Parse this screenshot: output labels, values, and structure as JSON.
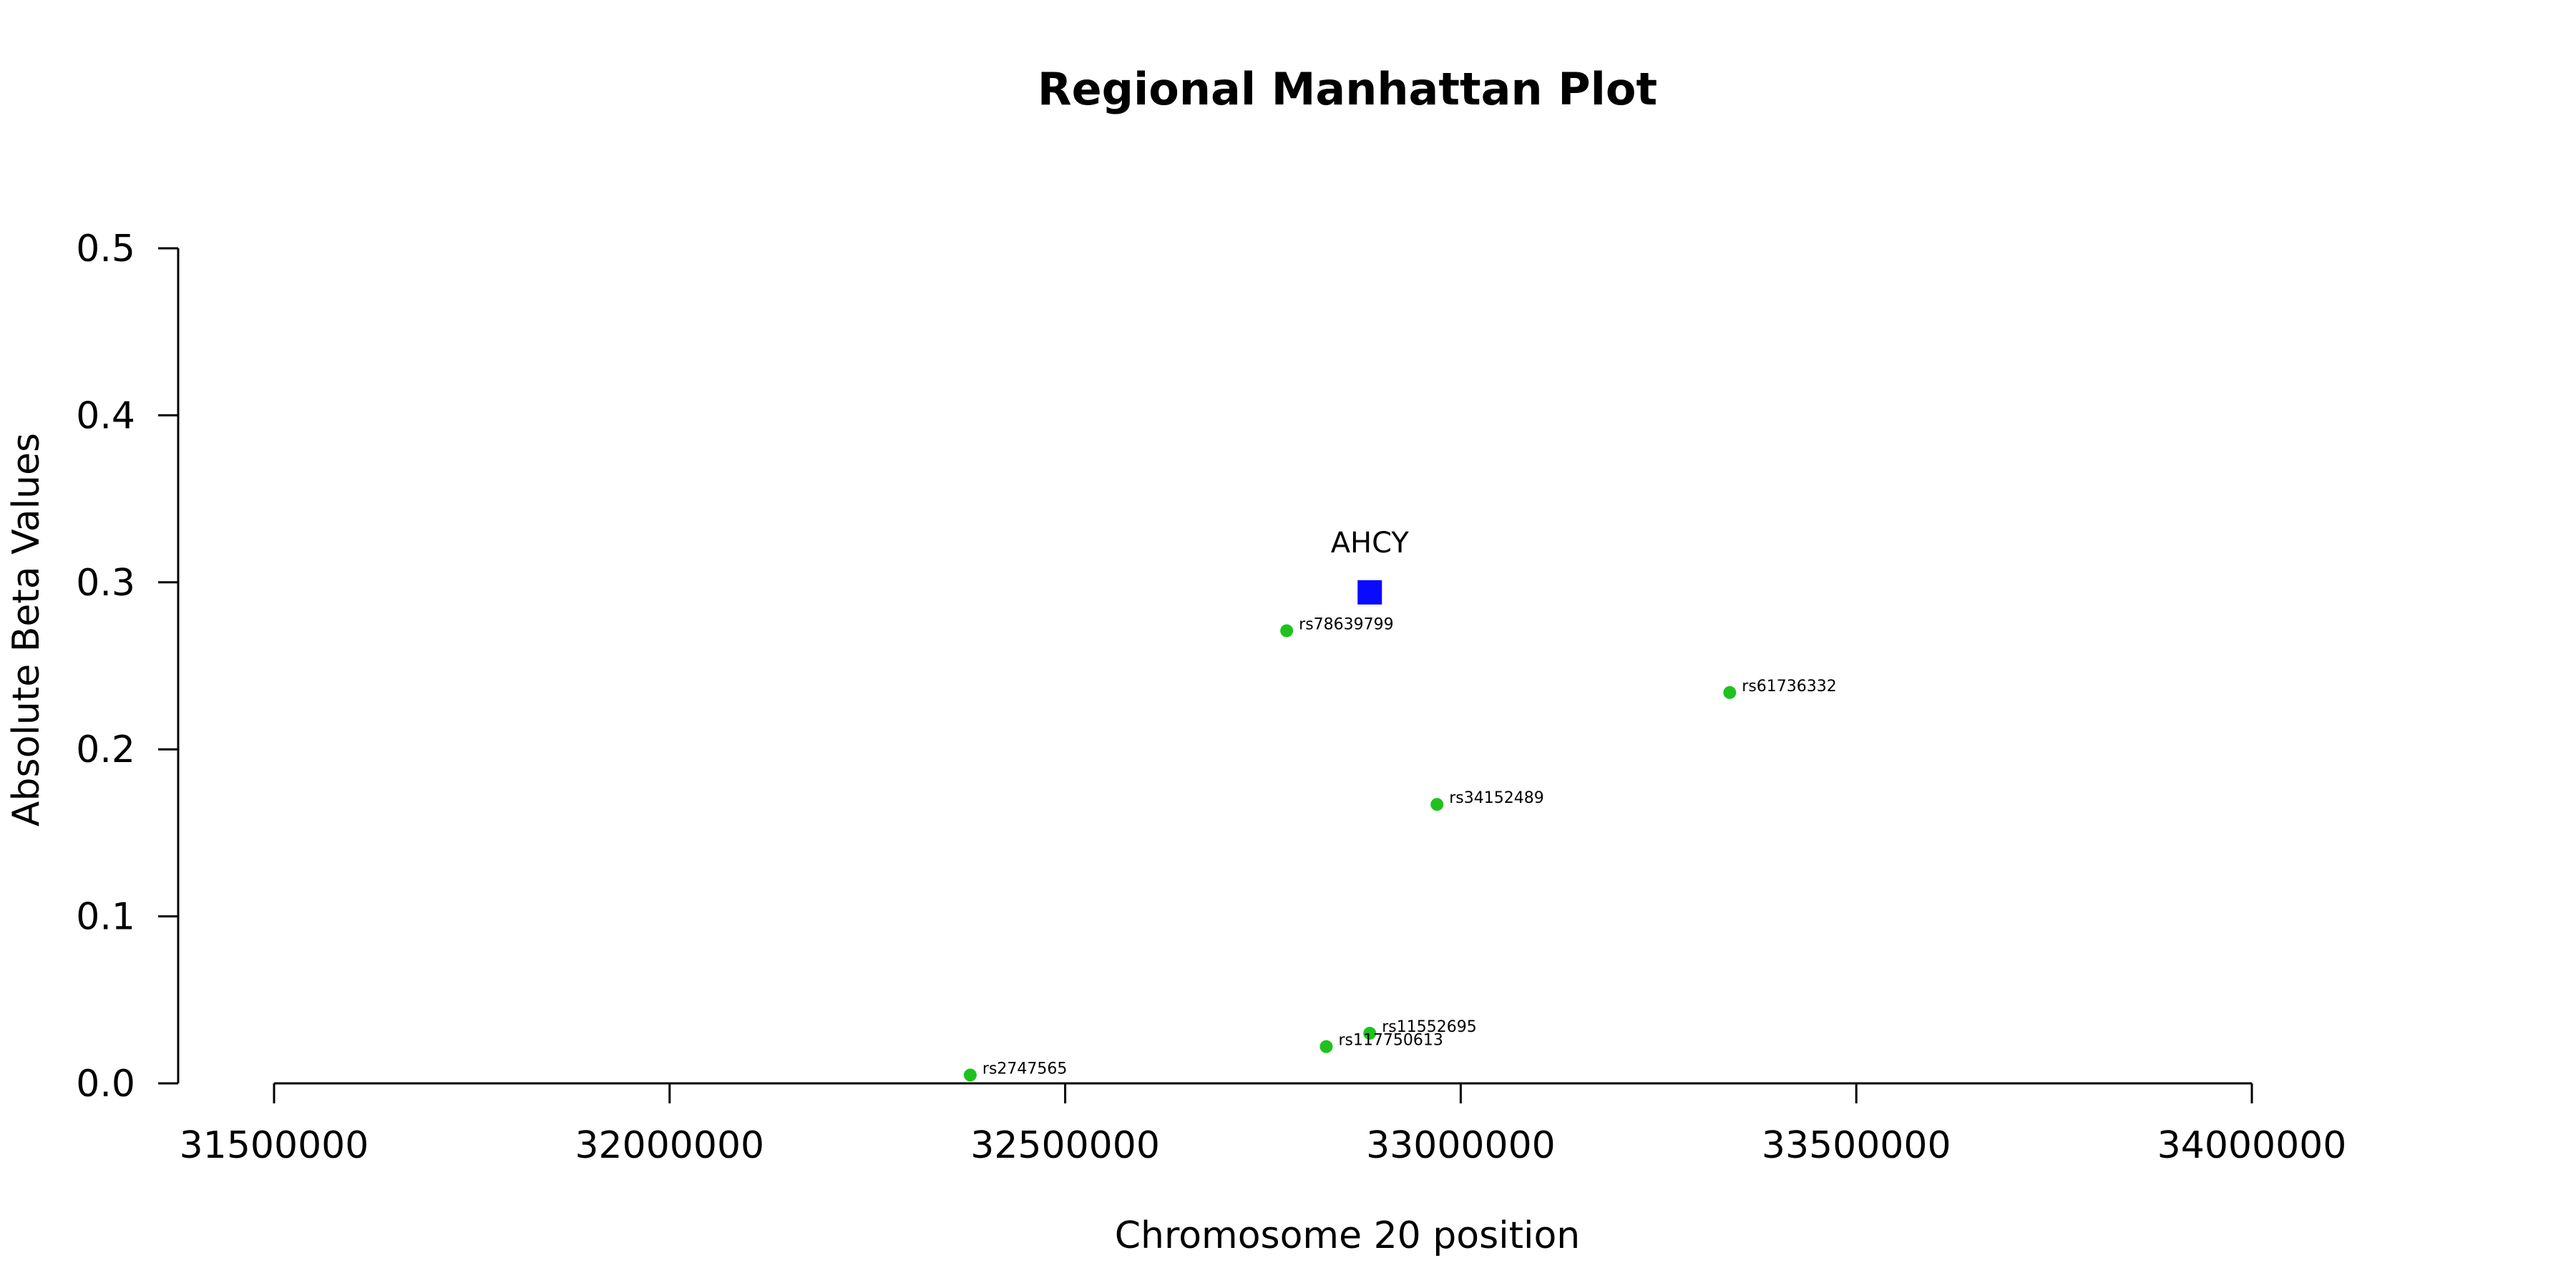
{
  "chart_data": {
    "type": "scatter",
    "title": "Regional Manhattan Plot",
    "xlabel": "Chromosome 20 position",
    "ylabel": "Absolute Beta Values",
    "xlim": [
      31500000,
      34000000
    ],
    "ylim": [
      0.0,
      0.5
    ],
    "x_ticks": [
      31500000,
      32000000,
      32500000,
      33000000,
      33500000,
      34000000
    ],
    "x_tick_labels": [
      "31500000",
      "32000000",
      "32500000",
      "33000000",
      "33500000",
      "34000000"
    ],
    "y_ticks": [
      0.0,
      0.1,
      0.2,
      0.3,
      0.4,
      0.5
    ],
    "y_tick_labels": [
      "0.0",
      "0.1",
      "0.2",
      "0.3",
      "0.4",
      "0.5"
    ],
    "grid": false,
    "legend": "none",
    "series": [
      {
        "marker": "circle",
        "color": "#1ec21e",
        "points": [
          {
            "label": "rs78639799",
            "x": 32780000,
            "y": 0.271
          },
          {
            "label": "rs61736332",
            "x": 33340000,
            "y": 0.234
          },
          {
            "label": "rs34152489",
            "x": 32970000,
            "y": 0.167
          },
          {
            "label": "rs11552695",
            "x": 32885000,
            "y": 0.03
          },
          {
            "label": "rs117750613",
            "x": 32830000,
            "y": 0.022
          },
          {
            "label": "rs2747565",
            "x": 32380000,
            "y": 0.005
          }
        ]
      },
      {
        "marker": "square",
        "color": "#0a0aff",
        "points": [
          {
            "label": "AHCY",
            "x": 32885000,
            "y": 0.294
          }
        ]
      }
    ]
  }
}
